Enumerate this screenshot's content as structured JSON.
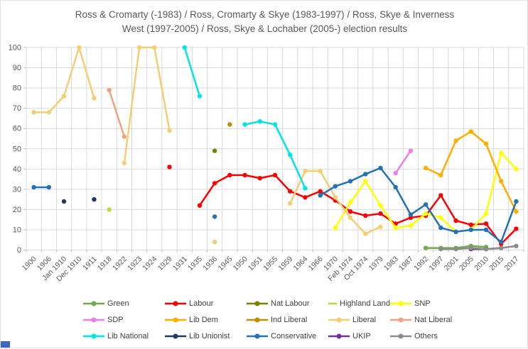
{
  "title": {
    "line1": "Ross & Cromarty (-1983) / Ross, Cromarty & Skye (1983-1997) / Ross, Skye & Inverness",
    "line2": "West (1997-2005) / Ross, Skye & Lochaber (2005-) election results"
  },
  "corner_artifact_color": "#3A66C4",
  "axis_color": "#595959",
  "gridline_color": "#D9D9D9",
  "tick_color": "#BFBFBF",
  "chart_data": {
    "type": "line",
    "title": "Ross & Cromarty (-1983) / Ross, Cromarty & Skye (1983-1997) / Ross, Skye & Inverness West (1997-2005) / Ross, Skye & Lochaber (2005-) election results",
    "xlabel": "",
    "ylabel": "",
    "ylim": [
      0,
      100
    ],
    "ytick_step": 10,
    "grid": true,
    "legend_position": "bottom",
    "categories": [
      "1900",
      "1906",
      "Jan 1910",
      "Dec 1910",
      "1911",
      "1918",
      "1922",
      "1923",
      "1924",
      "1929",
      "1931",
      "1935",
      "1936",
      "1945",
      "1950",
      "1951",
      "1955",
      "1959",
      "1964",
      "1966",
      "1970",
      "Feb 1974",
      "Oct 1974",
      "1979",
      "1983",
      "1987",
      "1992",
      "1997",
      "2001",
      "2005",
      "2010",
      "2015",
      "2017"
    ],
    "series": [
      {
        "name": "Green",
        "color": "#6FAD47",
        "marker": "circle",
        "values": [
          null,
          null,
          null,
          null,
          null,
          null,
          null,
          null,
          null,
          null,
          null,
          null,
          null,
          null,
          null,
          null,
          null,
          null,
          null,
          null,
          null,
          null,
          null,
          null,
          null,
          null,
          1,
          1,
          1,
          2,
          1.5,
          null,
          null
        ]
      },
      {
        "name": "Labour",
        "color": "#FF0000",
        "marker": "circle",
        "values": [
          null,
          null,
          null,
          null,
          null,
          null,
          null,
          null,
          null,
          41,
          null,
          22,
          33,
          37,
          37,
          35.5,
          37,
          29,
          26,
          29,
          24.5,
          19,
          17,
          18,
          13,
          16,
          17,
          27,
          14.5,
          12.5,
          13,
          3,
          10.5
        ]
      },
      {
        "name": "Nat Labour",
        "color": "#7F7F00",
        "marker": "circle",
        "values": [
          null,
          null,
          null,
          null,
          null,
          null,
          null,
          null,
          null,
          null,
          null,
          null,
          49,
          null,
          null,
          null,
          null,
          null,
          null,
          null,
          null,
          null,
          null,
          null,
          null,
          null,
          null,
          null,
          null,
          null,
          null,
          null,
          null
        ]
      },
      {
        "name": "Highland Land",
        "color": "#BFD641",
        "marker": "circle",
        "values": [
          null,
          null,
          null,
          null,
          null,
          20,
          null,
          null,
          null,
          null,
          null,
          null,
          null,
          null,
          null,
          null,
          null,
          null,
          null,
          null,
          null,
          null,
          null,
          null,
          null,
          null,
          null,
          null,
          null,
          null,
          null,
          null,
          null
        ]
      },
      {
        "name": "SNP",
        "color": "#FFFF00",
        "marker": "diamond",
        "values": [
          null,
          null,
          null,
          null,
          null,
          null,
          null,
          null,
          null,
          null,
          null,
          null,
          null,
          null,
          null,
          null,
          null,
          null,
          null,
          null,
          11,
          23.5,
          34,
          22,
          11,
          12,
          18,
          16,
          9,
          10,
          18,
          48,
          40
        ]
      },
      {
        "name": "SDP",
        "color": "#EE7DF0",
        "marker": "circle",
        "values": [
          null,
          null,
          null,
          null,
          null,
          null,
          null,
          null,
          null,
          null,
          null,
          null,
          null,
          null,
          null,
          null,
          null,
          null,
          null,
          null,
          null,
          null,
          null,
          null,
          38,
          49,
          null,
          null,
          null,
          null,
          null,
          null,
          null
        ]
      },
      {
        "name": "Lib Dem",
        "color": "#FFAE00",
        "marker": "circle",
        "values": [
          null,
          null,
          null,
          null,
          null,
          null,
          null,
          null,
          null,
          null,
          null,
          null,
          null,
          null,
          null,
          null,
          null,
          null,
          null,
          null,
          null,
          null,
          null,
          null,
          null,
          null,
          40.5,
          37,
          54,
          58.5,
          52.5,
          34,
          19
        ]
      },
      {
        "name": "Ind Liberal",
        "color": "#BF8F00",
        "marker": "circle",
        "values": [
          null,
          null,
          null,
          null,
          null,
          null,
          null,
          null,
          null,
          null,
          null,
          null,
          null,
          62,
          null,
          null,
          null,
          null,
          null,
          null,
          null,
          null,
          null,
          null,
          null,
          null,
          null,
          null,
          null,
          null,
          null,
          null,
          null
        ]
      },
      {
        "name": "Liberal",
        "color": "#F4CE73",
        "marker": "circle",
        "values": [
          68,
          68,
          76,
          100,
          75,
          null,
          43,
          100,
          100,
          59,
          null,
          null,
          4,
          null,
          null,
          null,
          null,
          23,
          39,
          39,
          26,
          16,
          8,
          11.5,
          null,
          null,
          null,
          null,
          null,
          null,
          null,
          null,
          null
        ]
      },
      {
        "name": "Nat Liberal",
        "color": "#EFA47E",
        "marker": "circle",
        "values": [
          null,
          null,
          null,
          null,
          null,
          79,
          56,
          null,
          null,
          null,
          null,
          null,
          null,
          null,
          null,
          null,
          null,
          null,
          null,
          null,
          null,
          null,
          null,
          null,
          null,
          null,
          null,
          null,
          null,
          null,
          null,
          null,
          null
        ]
      },
      {
        "name": "Lib National",
        "color": "#00E5E5",
        "marker": "circle",
        "values": [
          null,
          null,
          null,
          null,
          null,
          null,
          null,
          null,
          null,
          null,
          100,
          76,
          null,
          null,
          62,
          63.5,
          62,
          47,
          30.5,
          null,
          null,
          null,
          null,
          null,
          null,
          null,
          null,
          null,
          null,
          null,
          null,
          null,
          null
        ]
      },
      {
        "name": "Lib Unionist",
        "color": "#203864",
        "marker": "circle",
        "values": [
          null,
          null,
          24,
          null,
          25,
          null,
          null,
          null,
          null,
          null,
          null,
          null,
          null,
          null,
          null,
          null,
          null,
          null,
          null,
          null,
          null,
          null,
          null,
          null,
          null,
          null,
          null,
          null,
          null,
          null,
          null,
          null,
          null
        ]
      },
      {
        "name": "Conservative",
        "color": "#2272B5",
        "marker": "circle",
        "values": [
          31,
          31,
          null,
          null,
          null,
          null,
          null,
          null,
          null,
          null,
          null,
          null,
          16.5,
          null,
          null,
          null,
          null,
          null,
          null,
          27,
          31.5,
          34,
          37.5,
          40.5,
          31,
          17.5,
          22.5,
          11,
          9,
          10,
          10,
          4,
          24
        ]
      },
      {
        "name": "UKIP",
        "color": "#7030A0",
        "marker": "circle",
        "values": [
          null,
          null,
          null,
          null,
          null,
          null,
          null,
          null,
          null,
          null,
          null,
          null,
          null,
          null,
          null,
          null,
          null,
          null,
          null,
          null,
          null,
          null,
          null,
          null,
          null,
          null,
          null,
          null,
          null,
          0.5,
          0.5,
          1,
          null
        ]
      },
      {
        "name": "Others",
        "color": "#8C8C8C",
        "marker": "circle",
        "values": [
          null,
          null,
          null,
          null,
          null,
          null,
          null,
          null,
          null,
          null,
          null,
          null,
          null,
          null,
          null,
          null,
          null,
          null,
          null,
          null,
          null,
          null,
          null,
          null,
          null,
          null,
          null,
          0.5,
          0.5,
          1,
          0.5,
          1,
          2
        ]
      }
    ]
  }
}
